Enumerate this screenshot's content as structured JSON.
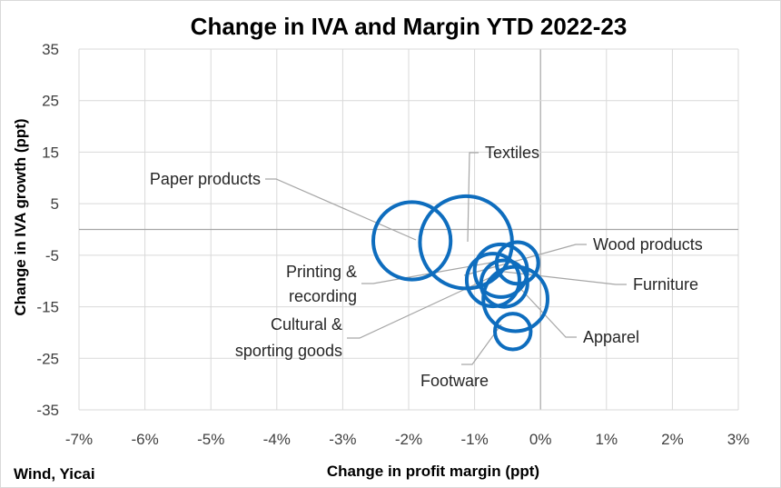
{
  "chart_data": {
    "type": "scatter",
    "subtype": "bubble",
    "title": "Change in IVA and Margin YTD 2022-23",
    "xlabel": "Change in profit margin (ppt)",
    "ylabel": "Change in IVA growth (ppt)",
    "source": "Wind, Yicai",
    "xlim": [
      -7,
      3
    ],
    "ylim": [
      -35,
      35
    ],
    "x_ticks": [
      -7,
      -6,
      -5,
      -4,
      -3,
      -2,
      -1,
      0,
      1,
      2,
      3
    ],
    "x_tick_labels": [
      "-7%",
      "-6%",
      "-5%",
      "-4%",
      "-3%",
      "-2%",
      "-1%",
      "0%",
      "1%",
      "2%",
      "3%"
    ],
    "y_ticks": [
      35,
      25,
      15,
      5,
      -5,
      -15,
      -25,
      -35
    ],
    "y_tick_labels": [
      "35",
      "25",
      "15",
      "5",
      "-5",
      "-15",
      "-25",
      "-35"
    ],
    "grid": true,
    "marker_color": "#0e6dbe",
    "points": [
      {
        "label": "Paper products",
        "x": -1.95,
        "y": -2.2,
        "size": 1.47
      },
      {
        "label": "Textiles",
        "x": -1.13,
        "y": -2.5,
        "size": 1.75
      },
      {
        "label": "Wood products",
        "x": -0.35,
        "y": -6.5,
        "size": 0.79
      },
      {
        "label": "Printing & recording",
        "x": -0.72,
        "y": -9.8,
        "size": 1.0
      },
      {
        "label": "Cultural & sporting goods",
        "x": -0.6,
        "y": -8.0,
        "size": 1.0
      },
      {
        "label": "Furniture",
        "x": -0.55,
        "y": -10.5,
        "size": 0.88
      },
      {
        "label": "Apparel",
        "x": -0.38,
        "y": -13.5,
        "size": 1.22
      },
      {
        "label": "Footware",
        "x": -0.42,
        "y": -19.8,
        "size": 0.68
      }
    ]
  }
}
